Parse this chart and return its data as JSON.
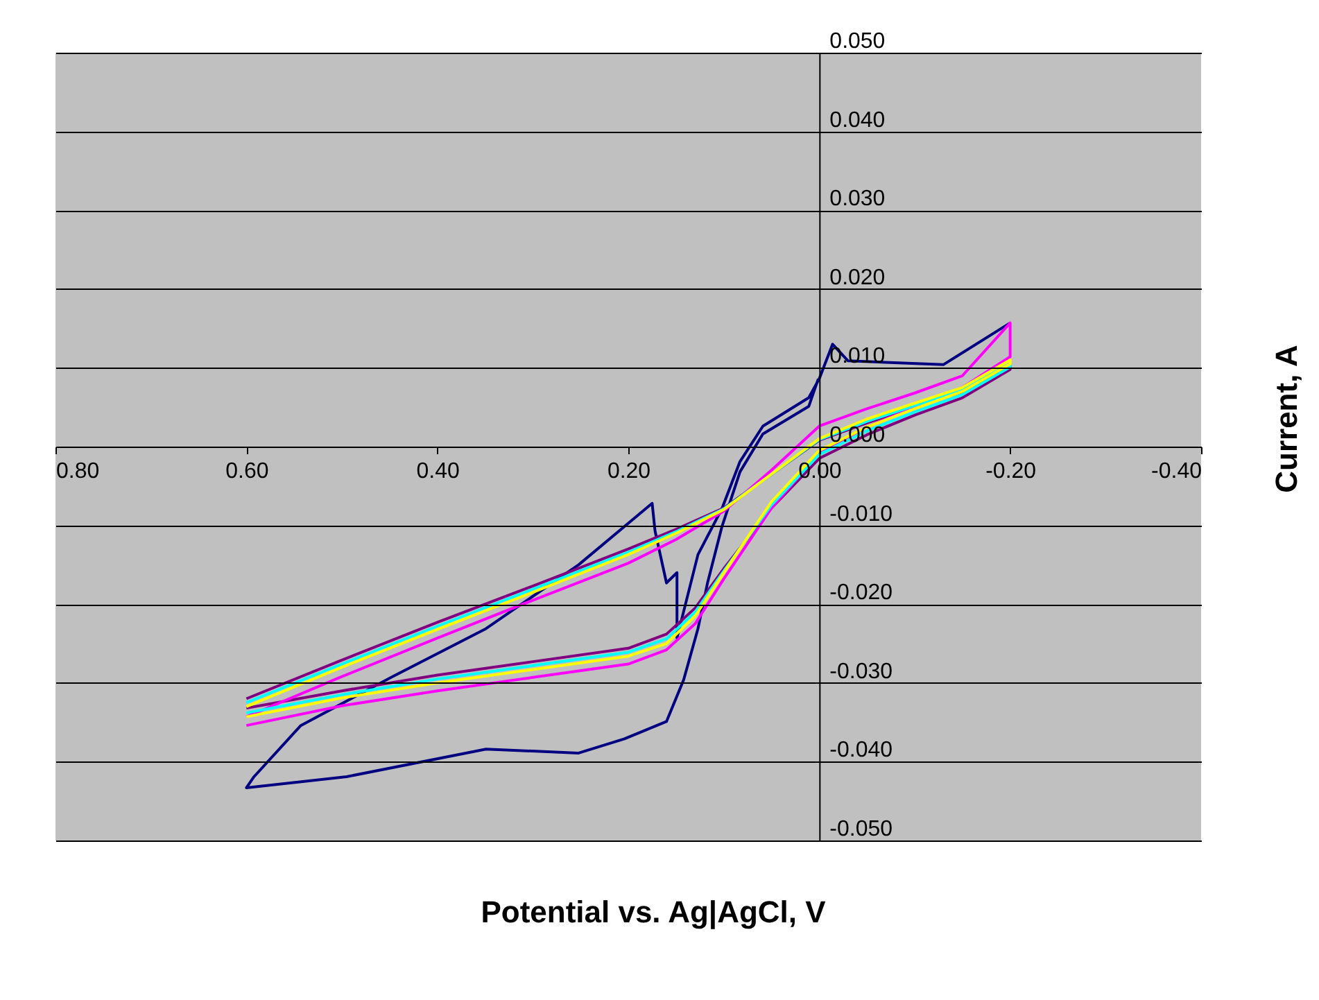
{
  "chart_data": {
    "type": "line",
    "xlabel": "Potential vs. Ag|AgCl, V",
    "ylabel": "Current, A",
    "xlim": [
      0.8,
      -0.4
    ],
    "ylim": [
      -0.05,
      0.05
    ],
    "xticks": [
      {
        "value": 0.8,
        "label": "0.80"
      },
      {
        "value": 0.6,
        "label": "0.60"
      },
      {
        "value": 0.4,
        "label": "0.40"
      },
      {
        "value": 0.2,
        "label": "0.20"
      },
      {
        "value": 0,
        "label": "0.00"
      },
      {
        "value": -0.2,
        "label": "-0.20"
      },
      {
        "value": -0.4,
        "label": "-0.40"
      }
    ],
    "yticks": [
      {
        "value": -0.05,
        "label": "-0.050"
      },
      {
        "value": -0.04,
        "label": "-0.040"
      },
      {
        "value": -0.03,
        "label": "-0.030"
      },
      {
        "value": -0.02,
        "label": "-0.020"
      },
      {
        "value": -0.01,
        "label": "-0.010"
      },
      {
        "value": 0,
        "label": "0.000"
      },
      {
        "value": 0.01,
        "label": "0.010"
      },
      {
        "value": 0.02,
        "label": "0.020"
      },
      {
        "value": 0.03,
        "label": "0.030"
      },
      {
        "value": 0.04,
        "label": "0.040"
      },
      {
        "value": 0.05,
        "label": "0.050"
      }
    ],
    "grid": "y",
    "legend": false,
    "marker": "none",
    "line_style": "solid",
    "series": [
      {
        "color": "#000080",
        "x": [
          -0.2,
          -0.13,
          -0.03,
          -0.014,
          0.0,
          0.011,
          0.059,
          0.083,
          0.102,
          0.127,
          0.149,
          0.149,
          0.16,
          0.172,
          0.175,
          0.252,
          0.349,
          0.447,
          0.543,
          0.592,
          0.6,
          0.495,
          0.349,
          0.252,
          0.204,
          0.16,
          0.142,
          0.127,
          0.117,
          0.102,
          0.083,
          0.059,
          0.011,
          0.001
        ],
        "values": [
          0.0157,
          0.0104,
          0.0109,
          0.013,
          0.0086,
          0.0062,
          0.0026,
          -0.0019,
          -0.0079,
          -0.0137,
          -0.0243,
          -0.016,
          -0.0173,
          -0.0107,
          -0.0072,
          -0.015,
          -0.0231,
          -0.0292,
          -0.0354,
          -0.0419,
          -0.0433,
          -0.0419,
          -0.0384,
          -0.0389,
          -0.0371,
          -0.0349,
          -0.0296,
          -0.0231,
          -0.0173,
          -0.0102,
          -0.0032,
          0.0016,
          0.0051,
          0.0086
        ]
      },
      {
        "color": "#800080",
        "x": [
          0.6,
          0.5,
          0.4,
          0.3,
          0.2,
          0.15,
          0.1,
          0.05,
          0.0,
          -0.05,
          -0.1,
          -0.15,
          -0.2,
          -0.2,
          -0.15,
          -0.1,
          -0.05,
          0.0,
          0.05,
          0.1,
          0.13,
          0.16,
          0.2,
          0.3,
          0.4,
          0.5,
          0.6
        ],
        "values": [
          -0.032,
          -0.0271,
          -0.0223,
          -0.0177,
          -0.013,
          -0.0105,
          -0.0078,
          -0.0035,
          0.0008,
          0.003,
          0.005,
          0.007,
          0.0102,
          0.0098,
          0.0062,
          0.004,
          0.0015,
          -0.0015,
          -0.0078,
          -0.0155,
          -0.0205,
          -0.0238,
          -0.0256,
          -0.0273,
          -0.029,
          -0.031,
          -0.0332
        ]
      },
      {
        "color": "#ff00ff",
        "x": [
          0.6,
          0.5,
          0.4,
          0.3,
          0.2,
          0.15,
          0.1,
          0.05,
          0.0,
          -0.05,
          -0.1,
          -0.15,
          -0.2,
          -0.2,
          -0.15,
          -0.1,
          -0.05,
          0.0,
          0.05,
          0.1,
          0.13,
          0.16,
          0.2,
          0.3,
          0.4,
          0.5,
          0.6
        ],
        "values": [
          -0.0343,
          -0.0292,
          -0.0243,
          -0.0195,
          -0.0148,
          -0.0118,
          -0.0082,
          -0.003,
          0.0026,
          0.0048,
          0.0068,
          0.009,
          0.0157,
          0.0114,
          0.0075,
          0.005,
          0.0025,
          -0.0008,
          -0.0078,
          -0.0168,
          -0.0225,
          -0.0258,
          -0.0276,
          -0.0293,
          -0.031,
          -0.0329,
          -0.0354
        ]
      },
      {
        "color": "#00ffff",
        "x": [
          0.6,
          0.5,
          0.4,
          0.3,
          0.2,
          0.15,
          0.1,
          0.05,
          0.0,
          -0.05,
          -0.1,
          -0.15,
          -0.2,
          -0.2,
          -0.15,
          -0.1,
          -0.05,
          0.0,
          0.05,
          0.1,
          0.13,
          0.16,
          0.2,
          0.3,
          0.4,
          0.5,
          0.6
        ],
        "values": [
          -0.0325,
          -0.0276,
          -0.0228,
          -0.0181,
          -0.0134,
          -0.0108,
          -0.0079,
          -0.0035,
          0.0009,
          0.0032,
          0.0052,
          0.0072,
          0.0105,
          0.0101,
          0.0066,
          0.0044,
          0.002,
          -0.001,
          -0.0074,
          -0.0158,
          -0.021,
          -0.0244,
          -0.0261,
          -0.0278,
          -0.0295,
          -0.0315,
          -0.0338
        ]
      },
      {
        "color": "#ffff00",
        "x": [
          0.6,
          0.5,
          0.4,
          0.3,
          0.2,
          0.15,
          0.1,
          0.05,
          0.0,
          -0.05,
          -0.1,
          -0.15,
          -0.2,
          -0.2,
          -0.15,
          -0.1,
          -0.05,
          0.0,
          0.05,
          0.1,
          0.13,
          0.16,
          0.2,
          0.3,
          0.4,
          0.5,
          0.6
        ],
        "values": [
          -0.033,
          -0.028,
          -0.0232,
          -0.0185,
          -0.0137,
          -0.011,
          -0.008,
          -0.0035,
          0.001,
          0.0035,
          0.0055,
          0.0075,
          0.011,
          0.0105,
          0.007,
          0.0048,
          0.0025,
          -0.0005,
          -0.007,
          -0.016,
          -0.0215,
          -0.025,
          -0.0266,
          -0.0283,
          -0.03,
          -0.0319,
          -0.0343
        ]
      }
    ]
  }
}
